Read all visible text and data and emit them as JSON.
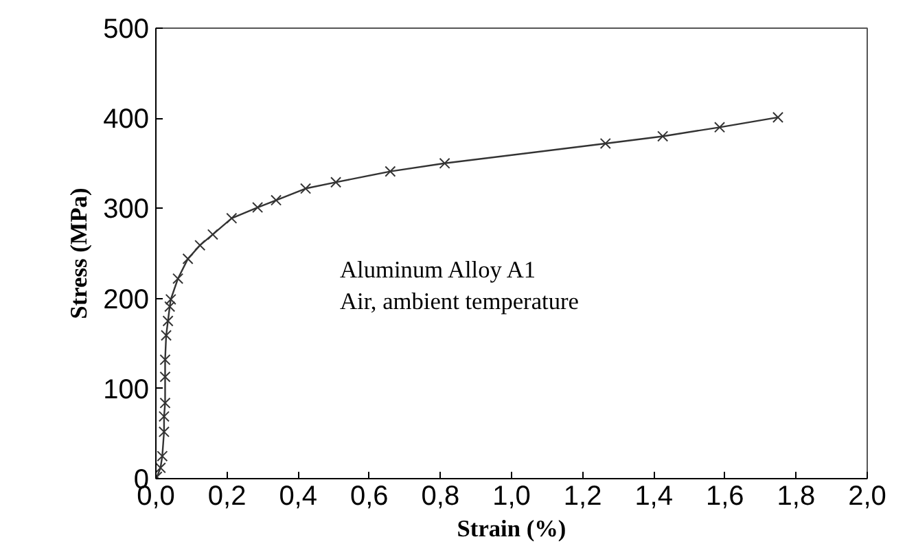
{
  "chart_data": {
    "type": "line",
    "xlabel": "Strain (%)",
    "ylabel": "Stress (MPa)",
    "annotations": [
      "Aluminum Alloy A1",
      "Air, ambient temperature"
    ],
    "x": [
      0.003,
      0.013,
      0.018,
      0.023,
      0.023,
      0.026,
      0.026,
      0.026,
      0.029,
      0.034,
      0.039,
      0.042,
      0.062,
      0.09,
      0.124,
      0.16,
      0.213,
      0.286,
      0.338,
      0.421,
      0.506,
      0.659,
      0.812,
      1.264,
      1.425,
      1.585,
      1.749
    ],
    "series": [
      {
        "color": "#333333",
        "values": [
          2,
          12,
          25,
          52,
          69,
          84,
          113,
          132,
          159,
          175,
          191,
          199,
          222,
          244,
          259,
          271,
          289,
          301,
          309,
          322,
          329,
          341,
          350,
          372,
          380,
          390,
          401
        ]
      }
    ],
    "xlim": [
      0,
      2
    ],
    "ylim": [
      0,
      500
    ],
    "xticks": [
      {
        "value": 0,
        "label": "0,0"
      },
      {
        "value": 0.2,
        "label": "0,2"
      },
      {
        "value": 0.4,
        "label": "0,4"
      },
      {
        "value": 0.6,
        "label": "0,6"
      },
      {
        "value": 0.8,
        "label": "0,8"
      },
      {
        "value": 1.0,
        "label": "1,0"
      },
      {
        "value": 1.2,
        "label": "1,2"
      },
      {
        "value": 1.4,
        "label": "1,4"
      },
      {
        "value": 1.6,
        "label": "1,6"
      },
      {
        "value": 1.8,
        "label": "1,8"
      },
      {
        "value": 2.0,
        "label": "2,0"
      }
    ],
    "yticks": [
      0,
      100,
      200,
      300,
      400,
      500
    ],
    "grid": false,
    "marker": "cross",
    "line_style": "solid"
  }
}
